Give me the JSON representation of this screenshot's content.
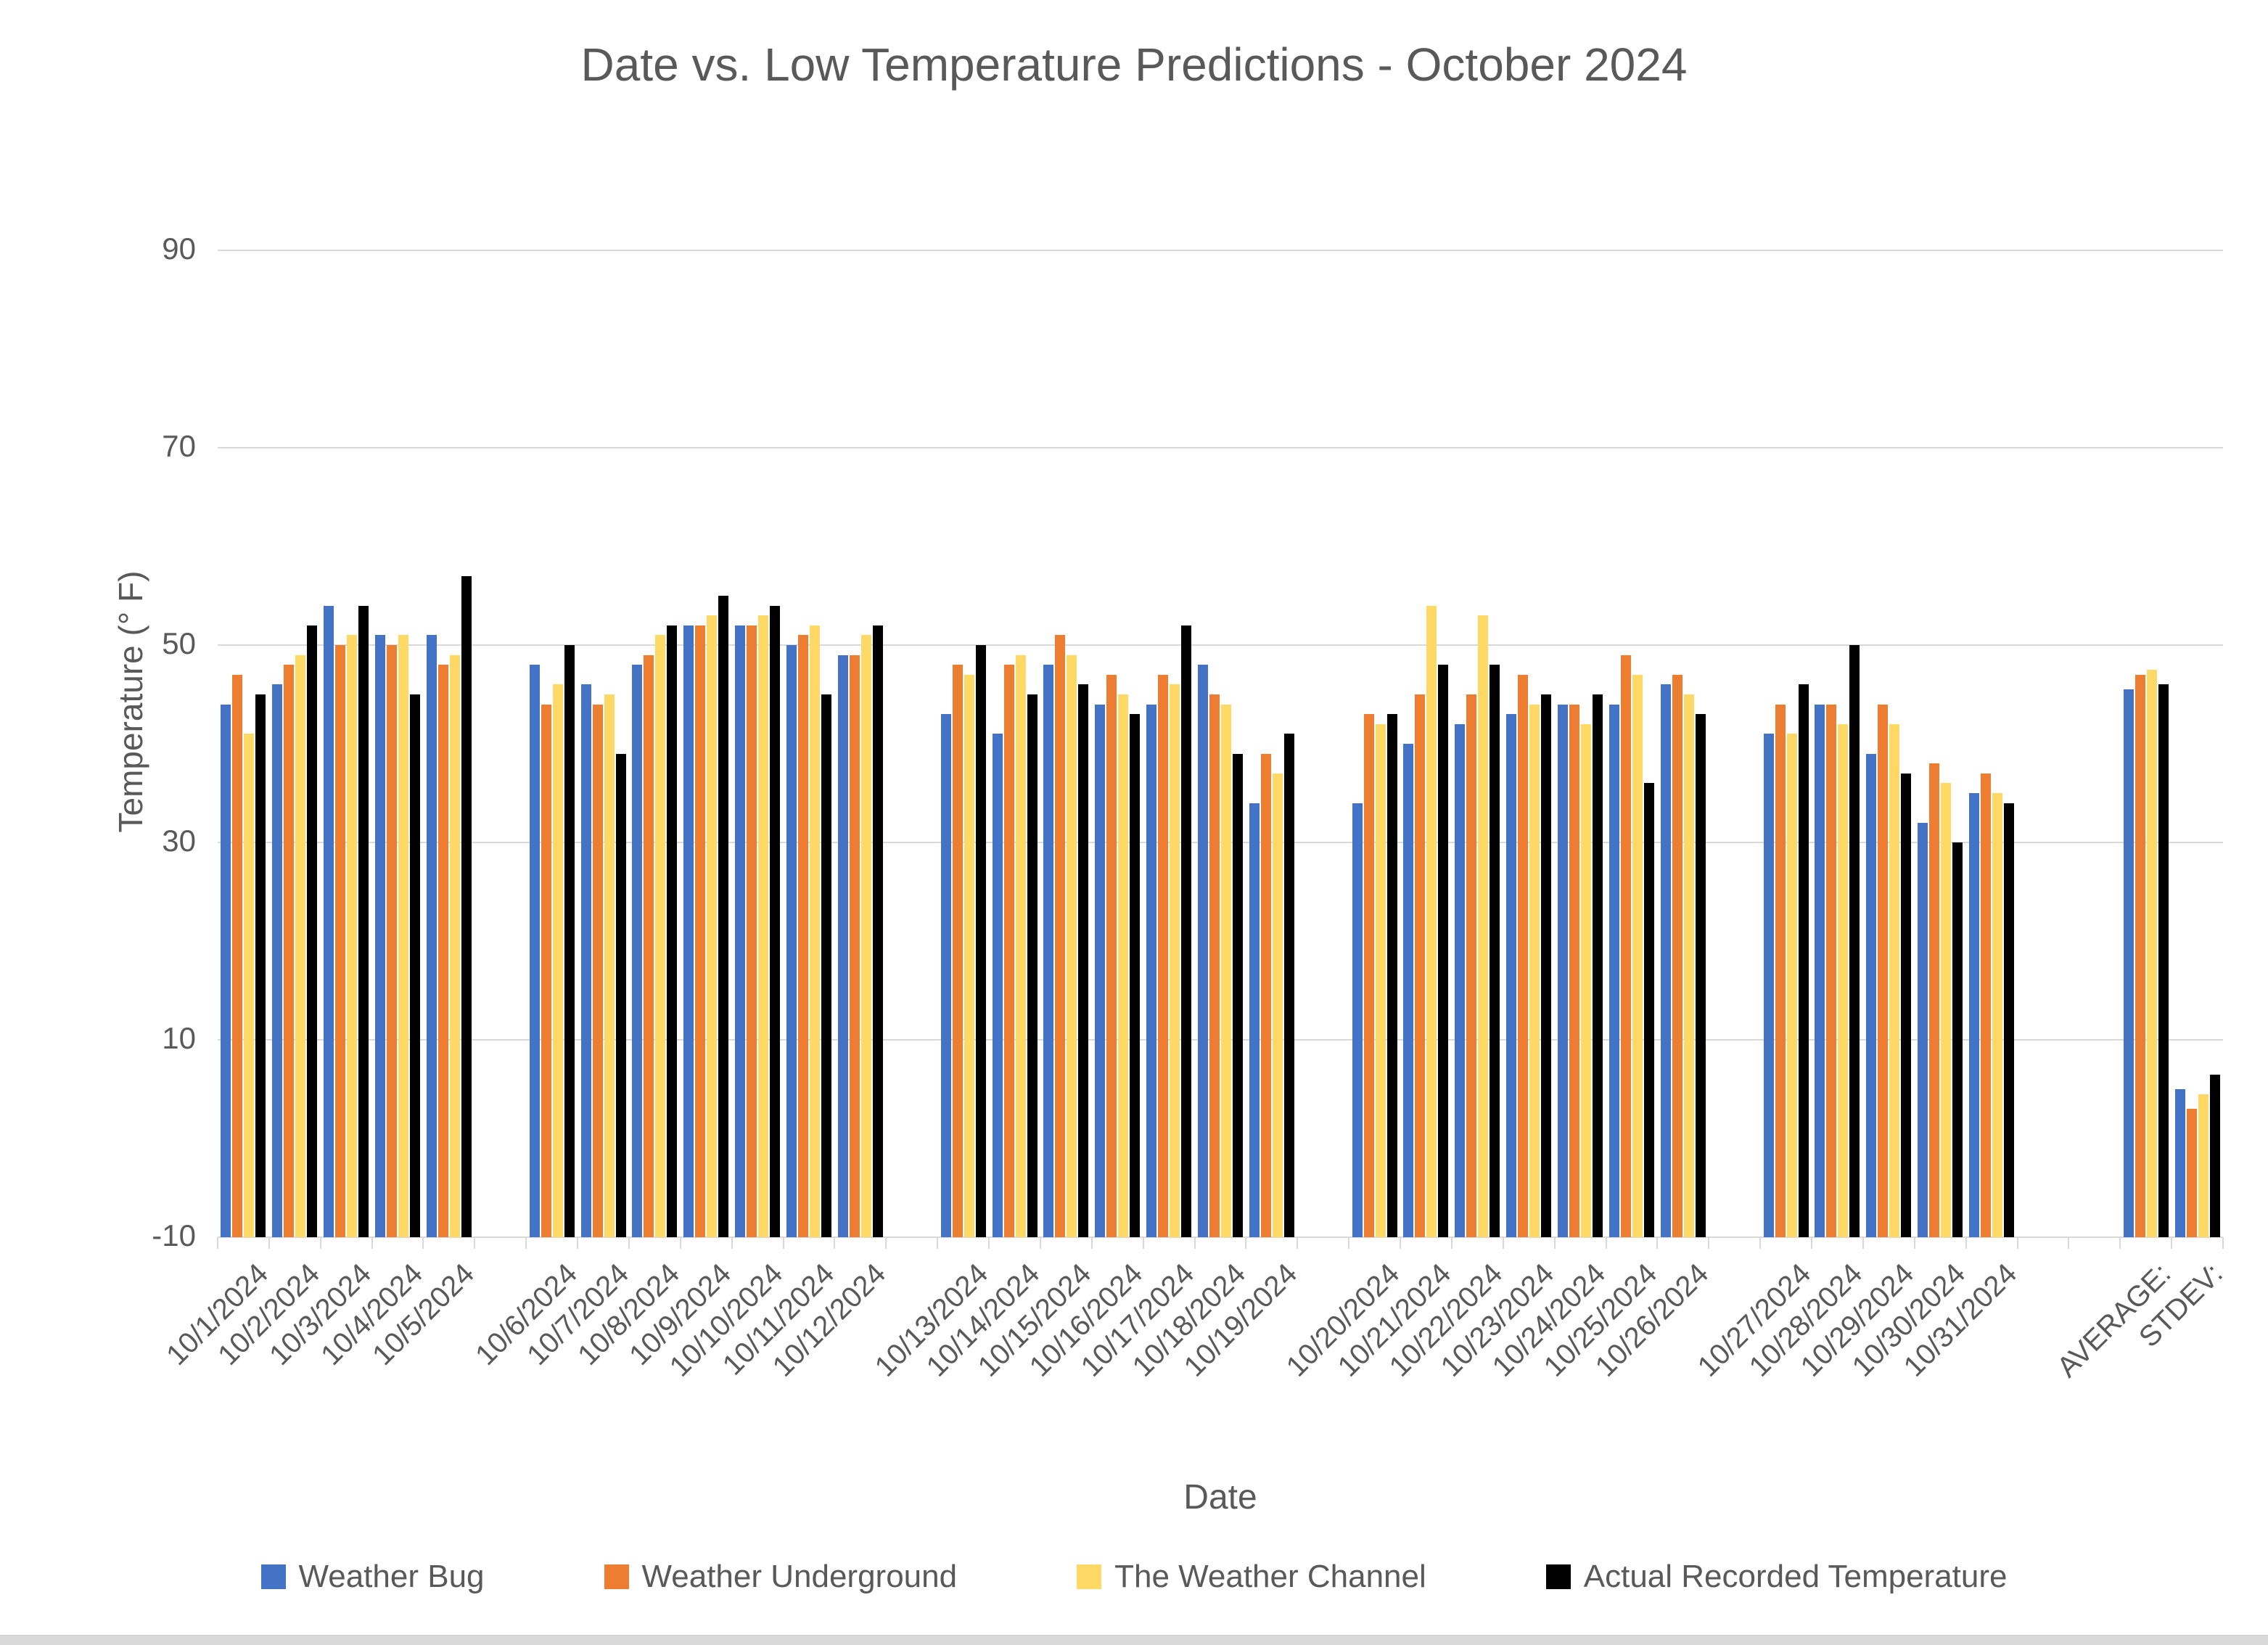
{
  "title": "Date vs. Low Temperature Predictions - October 2024",
  "colors": {
    "text": "#595959",
    "gridline": "#d9d9d9",
    "weather_bug": "#4472C4",
    "weather_underground": "#ED7D31",
    "the_weather_channel": "#FFD966",
    "actual_recorded": "#000000"
  },
  "chart_data": {
    "type": "bar",
    "title": "Date vs. Low Temperature Predictions - October 2024",
    "xlabel": "Date",
    "ylabel": "Temperature (° F)",
    "ylim": [
      -10,
      90
    ],
    "yticks": [
      90,
      70,
      50,
      30,
      10,
      -10
    ],
    "bar_baseline": -10,
    "grid": true,
    "legend_position": "bottom",
    "categories": [
      "10/1/2024",
      "10/2/2024",
      "10/3/2024",
      "10/4/2024",
      "10/5/2024",
      "",
      "10/6/2024",
      "10/7/2024",
      "10/8/2024",
      "10/9/2024",
      "10/10/2024",
      "10/11/2024",
      "10/12/2024",
      "",
      "10/13/2024",
      "10/14/2024",
      "10/15/2024",
      "10/16/2024",
      "10/17/2024",
      "10/18/2024",
      "10/19/2024",
      "",
      "10/20/2024",
      "10/21/2024",
      "10/22/2024",
      "10/23/2024",
      "10/24/2024",
      "10/25/2024",
      "10/26/2024",
      "",
      "10/27/2024",
      "10/28/2024",
      "10/29/2024",
      "10/30/2024",
      "10/31/2024",
      "",
      "",
      "AVERAGE:",
      "STDEV:"
    ],
    "series": [
      {
        "name": "Weather Bug",
        "color": "#4472C4",
        "values": [
          44,
          46,
          54,
          51,
          51,
          null,
          48,
          46,
          48,
          52,
          52,
          50,
          49,
          null,
          43,
          41,
          48,
          44,
          44,
          48,
          34,
          null,
          34,
          40,
          42,
          43,
          44,
          44,
          46,
          null,
          41,
          44,
          39,
          32,
          35,
          null,
          null,
          45.5,
          5
        ]
      },
      {
        "name": "Weather Underground",
        "color": "#ED7D31",
        "values": [
          47,
          48,
          50,
          50,
          48,
          null,
          44,
          44,
          49,
          52,
          52,
          51,
          49,
          null,
          48,
          48,
          51,
          47,
          47,
          45,
          39,
          null,
          43,
          45,
          45,
          47,
          44,
          49,
          47,
          null,
          44,
          44,
          44,
          38,
          37,
          null,
          null,
          47,
          3
        ]
      },
      {
        "name": "The Weather Channel",
        "color": "#FFD966",
        "values": [
          41,
          49,
          51,
          51,
          49,
          null,
          46,
          45,
          51,
          53,
          53,
          52,
          51,
          null,
          47,
          49,
          49,
          45,
          46,
          44,
          37,
          null,
          42,
          54,
          53,
          44,
          42,
          47,
          45,
          null,
          41,
          42,
          42,
          36,
          35,
          null,
          null,
          47.5,
          4.5
        ]
      },
      {
        "name": "Actual Recorded Temperature",
        "color": "#000000",
        "values": [
          45,
          52,
          54,
          45,
          57,
          null,
          50,
          39,
          52,
          55,
          54,
          45,
          52,
          null,
          50,
          45,
          46,
          43,
          52,
          39,
          41,
          null,
          43,
          48,
          48,
          45,
          45,
          36,
          43,
          null,
          46,
          50,
          37,
          30,
          34,
          null,
          null,
          46,
          6.5
        ]
      }
    ]
  }
}
